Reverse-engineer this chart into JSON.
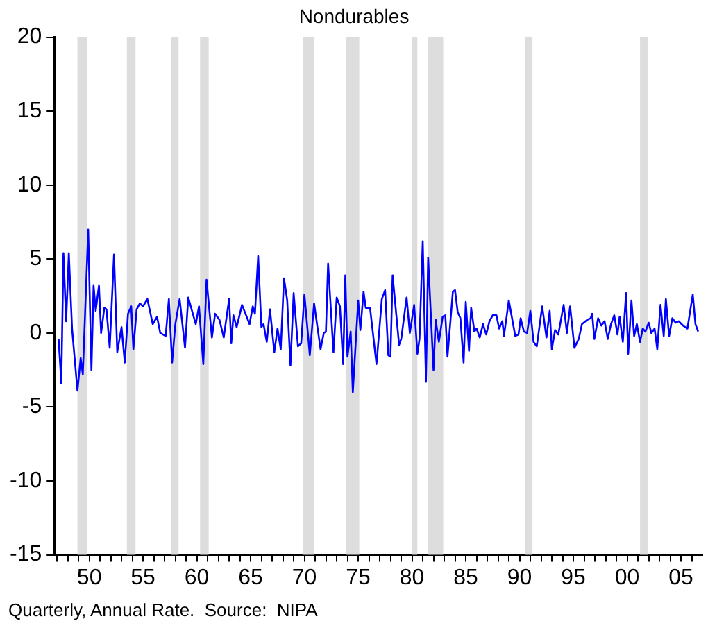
{
  "chart_data": {
    "type": "line",
    "title": "Nondurables",
    "annotations": [
      "Quarterly, Annual Rate.  Source:  NIPA"
    ],
    "xlim": [
      1946.75,
      2007
    ],
    "xticks": [
      {
        "value": 1947,
        "label": null
      },
      {
        "value": 1948,
        "label": null
      },
      {
        "value": 1949,
        "label": null
      },
      {
        "value": 1950,
        "label": "50"
      },
      {
        "value": 1951,
        "label": null
      },
      {
        "value": 1952,
        "label": null
      },
      {
        "value": 1953,
        "label": null
      },
      {
        "value": 1954,
        "label": null
      },
      {
        "value": 1955,
        "label": "55"
      },
      {
        "value": 1956,
        "label": null
      },
      {
        "value": 1957,
        "label": null
      },
      {
        "value": 1958,
        "label": null
      },
      {
        "value": 1959,
        "label": null
      },
      {
        "value": 1960,
        "label": "60"
      },
      {
        "value": 1961,
        "label": null
      },
      {
        "value": 1962,
        "label": null
      },
      {
        "value": 1963,
        "label": null
      },
      {
        "value": 1964,
        "label": null
      },
      {
        "value": 1965,
        "label": "65"
      },
      {
        "value": 1966,
        "label": null
      },
      {
        "value": 1967,
        "label": null
      },
      {
        "value": 1968,
        "label": null
      },
      {
        "value": 1969,
        "label": null
      },
      {
        "value": 1970,
        "label": "70"
      },
      {
        "value": 1971,
        "label": null
      },
      {
        "value": 1972,
        "label": null
      },
      {
        "value": 1973,
        "label": null
      },
      {
        "value": 1974,
        "label": null
      },
      {
        "value": 1975,
        "label": "75"
      },
      {
        "value": 1976,
        "label": null
      },
      {
        "value": 1977,
        "label": null
      },
      {
        "value": 1978,
        "label": null
      },
      {
        "value": 1979,
        "label": null
      },
      {
        "value": 1980,
        "label": "80"
      },
      {
        "value": 1981,
        "label": null
      },
      {
        "value": 1982,
        "label": null
      },
      {
        "value": 1983,
        "label": null
      },
      {
        "value": 1984,
        "label": null
      },
      {
        "value": 1985,
        "label": "85"
      },
      {
        "value": 1986,
        "label": null
      },
      {
        "value": 1987,
        "label": null
      },
      {
        "value": 1988,
        "label": null
      },
      {
        "value": 1989,
        "label": null
      },
      {
        "value": 1990,
        "label": "90"
      },
      {
        "value": 1991,
        "label": null
      },
      {
        "value": 1992,
        "label": null
      },
      {
        "value": 1993,
        "label": null
      },
      {
        "value": 1994,
        "label": null
      },
      {
        "value": 1995,
        "label": "95"
      },
      {
        "value": 1996,
        "label": null
      },
      {
        "value": 1997,
        "label": null
      },
      {
        "value": 1998,
        "label": null
      },
      {
        "value": 1999,
        "label": null
      },
      {
        "value": 2000,
        "label": "00"
      },
      {
        "value": 2001,
        "label": null
      },
      {
        "value": 2002,
        "label": null
      },
      {
        "value": 2003,
        "label": null
      },
      {
        "value": 2004,
        "label": null
      },
      {
        "value": 2005,
        "label": "05"
      },
      {
        "value": 2006,
        "label": null
      }
    ],
    "ylim": [
      -15,
      20
    ],
    "yticks": [
      -15,
      -10,
      -5,
      0,
      5,
      10,
      15,
      20
    ],
    "grid": false,
    "legend": false,
    "marker": "none",
    "line_style": "solid",
    "bands": [
      {
        "axis": "x",
        "from": 1948.9,
        "to": 1949.8,
        "color": "#dddddd"
      },
      {
        "axis": "x",
        "from": 1953.5,
        "to": 1954.3,
        "color": "#dddddd"
      },
      {
        "axis": "x",
        "from": 1957.6,
        "to": 1958.3,
        "color": "#dddddd"
      },
      {
        "axis": "x",
        "from": 1960.3,
        "to": 1961.1,
        "color": "#dddddd"
      },
      {
        "axis": "x",
        "from": 1969.9,
        "to": 1970.9,
        "color": "#dddddd"
      },
      {
        "axis": "x",
        "from": 1973.9,
        "to": 1975.1,
        "color": "#dddddd"
      },
      {
        "axis": "x",
        "from": 1980.0,
        "to": 1980.5,
        "color": "#dddddd"
      },
      {
        "axis": "x",
        "from": 1981.5,
        "to": 1982.9,
        "color": "#dddddd"
      },
      {
        "axis": "x",
        "from": 1990.5,
        "to": 1991.2,
        "color": "#dddddd"
      },
      {
        "axis": "x",
        "from": 2001.2,
        "to": 2001.9,
        "color": "#dddddd"
      }
    ],
    "series": [
      {
        "color": "#0000ff",
        "x": [
          1947.15,
          1947.4,
          1947.6,
          1947.85,
          1948.1,
          1948.4,
          1948.9,
          1949.2,
          1949.4,
          1949.9,
          1950.2,
          1950.4,
          1950.6,
          1950.9,
          1951.1,
          1951.4,
          1951.6,
          1951.9,
          1952.3,
          1952.6,
          1953.0,
          1953.3,
          1953.6,
          1953.9,
          1954.1,
          1954.4,
          1954.7,
          1955.0,
          1955.4,
          1955.9,
          1956.3,
          1956.6,
          1957.1,
          1957.4,
          1957.7,
          1958.0,
          1958.4,
          1958.9,
          1959.2,
          1959.9,
          1960.2,
          1960.6,
          1960.9,
          1961.4,
          1961.7,
          1962.1,
          1962.5,
          1963.0,
          1963.2,
          1963.4,
          1963.7,
          1964.2,
          1964.9,
          1965.2,
          1965.4,
          1965.7,
          1966.0,
          1966.2,
          1966.5,
          1966.8,
          1967.2,
          1967.5,
          1967.8,
          1968.1,
          1968.4,
          1968.7,
          1969.0,
          1969.4,
          1969.7,
          1970.0,
          1970.5,
          1970.9,
          1971.5,
          1971.8,
          1972.0,
          1972.2,
          1972.7,
          1973.0,
          1973.3,
          1973.6,
          1973.8,
          1974.0,
          1974.3,
          1974.5,
          1975.0,
          1975.2,
          1975.5,
          1975.7,
          1976.1,
          1976.7,
          1977.2,
          1977.5,
          1977.8,
          1978.0,
          1978.2,
          1978.8,
          1979.0,
          1979.5,
          1979.8,
          1980.2,
          1980.5,
          1980.7,
          1981.0,
          1981.3,
          1981.5,
          1982.0,
          1982.2,
          1982.5,
          1982.85,
          1983.1,
          1983.3,
          1983.8,
          1984.0,
          1984.25,
          1984.5,
          1984.8,
          1985.0,
          1985.3,
          1985.5,
          1985.8,
          1986.0,
          1986.3,
          1986.6,
          1986.9,
          1987.2,
          1987.5,
          1987.85,
          1988.1,
          1988.4,
          1988.55,
          1989.0,
          1989.3,
          1989.6,
          1989.9,
          1990.1,
          1990.4,
          1990.7,
          1991.0,
          1991.3,
          1991.6,
          1992.1,
          1992.5,
          1992.8,
          1993.0,
          1993.3,
          1993.6,
          1994.1,
          1994.4,
          1994.7,
          1995.1,
          1995.5,
          1995.8,
          1996.3,
          1996.6,
          1996.75,
          1996.95,
          1997.3,
          1997.6,
          1997.9,
          1998.2,
          1998.5,
          1998.8,
          1999.1,
          1999.3,
          1999.6,
          1999.9,
          2000.1,
          2000.4,
          2000.65,
          2000.9,
          2001.2,
          2001.45,
          2001.7,
          2002.0,
          2002.25,
          2002.55,
          2002.8,
          2003.1,
          2003.4,
          2003.6,
          2003.9,
          2004.2,
          2004.5,
          2004.8,
          2005.2,
          2005.6,
          2006.1,
          2006.35,
          2006.6
        ],
        "values": [
          -0.4,
          -3.4,
          5.4,
          0.8,
          5.4,
          0.3,
          -3.9,
          -1.7,
          -2.8,
          7.0,
          -2.5,
          3.2,
          1.5,
          3.2,
          0,
          1.7,
          1.6,
          -1.0,
          5.3,
          -1.3,
          0.4,
          -2.0,
          1.3,
          1.8,
          -1.1,
          1.6,
          2.0,
          1.8,
          2.3,
          0.6,
          1.1,
          0,
          -0.2,
          2.3,
          -2.0,
          0.6,
          2.3,
          -1.0,
          2.4,
          0.6,
          1.8,
          -2.1,
          3.6,
          -0.3,
          1.3,
          0.9,
          -0.3,
          2.3,
          -0.7,
          1.2,
          0.4,
          1.9,
          0.6,
          1.8,
          1.3,
          5.2,
          0.4,
          0.6,
          -0.6,
          1.6,
          -1.3,
          0.3,
          -1.1,
          3.7,
          2.2,
          -2.2,
          2.7,
          -0.9,
          -0.7,
          2.6,
          -1.5,
          2.0,
          -1.1,
          0,
          0.1,
          4.7,
          -1.3,
          2.4,
          1.8,
          -2.1,
          3.9,
          -1.6,
          0.1,
          -4.0,
          2.2,
          0.2,
          2.8,
          1.7,
          1.7,
          -2.1,
          2.3,
          2.9,
          -1.5,
          -1.6,
          3.9,
          -0.8,
          -0.4,
          2.4,
          0,
          1.9,
          -1.4,
          -0.4,
          6.2,
          -3.3,
          5.1,
          -2.5,
          0.9,
          -0.6,
          1.1,
          1.2,
          -1.6,
          2.8,
          2.9,
          1.4,
          1.0,
          -2.0,
          2.1,
          -1.2,
          1.7,
          0.1,
          0.3,
          -0.3,
          0.6,
          -0.1,
          0.8,
          1.2,
          1.2,
          0.3,
          0.8,
          -0.2,
          2.2,
          1.0,
          -0.2,
          -0.1,
          1.0,
          0.1,
          0,
          1.5,
          -0.6,
          -0.9,
          1.8,
          -0.3,
          1.5,
          -1.1,
          0.2,
          -0.1,
          1.9,
          0,
          1.8,
          -1.0,
          -0.4,
          0.6,
          0.9,
          1.0,
          1.3,
          -0.4,
          1.0,
          0.5,
          0.8,
          -0.4,
          0.6,
          1.2,
          -0.1,
          1.1,
          -0.6,
          2.7,
          -1.4,
          2.2,
          -0.2,
          0.6,
          -0.6,
          0.3,
          0.1,
          0.7,
          0,
          0.3,
          -1.1,
          1.9,
          -0.2,
          2.3,
          -0.2,
          1.0,
          0.7,
          0.8,
          0.5,
          0.3,
          2.6,
          0.6,
          0.1
        ]
      }
    ]
  }
}
